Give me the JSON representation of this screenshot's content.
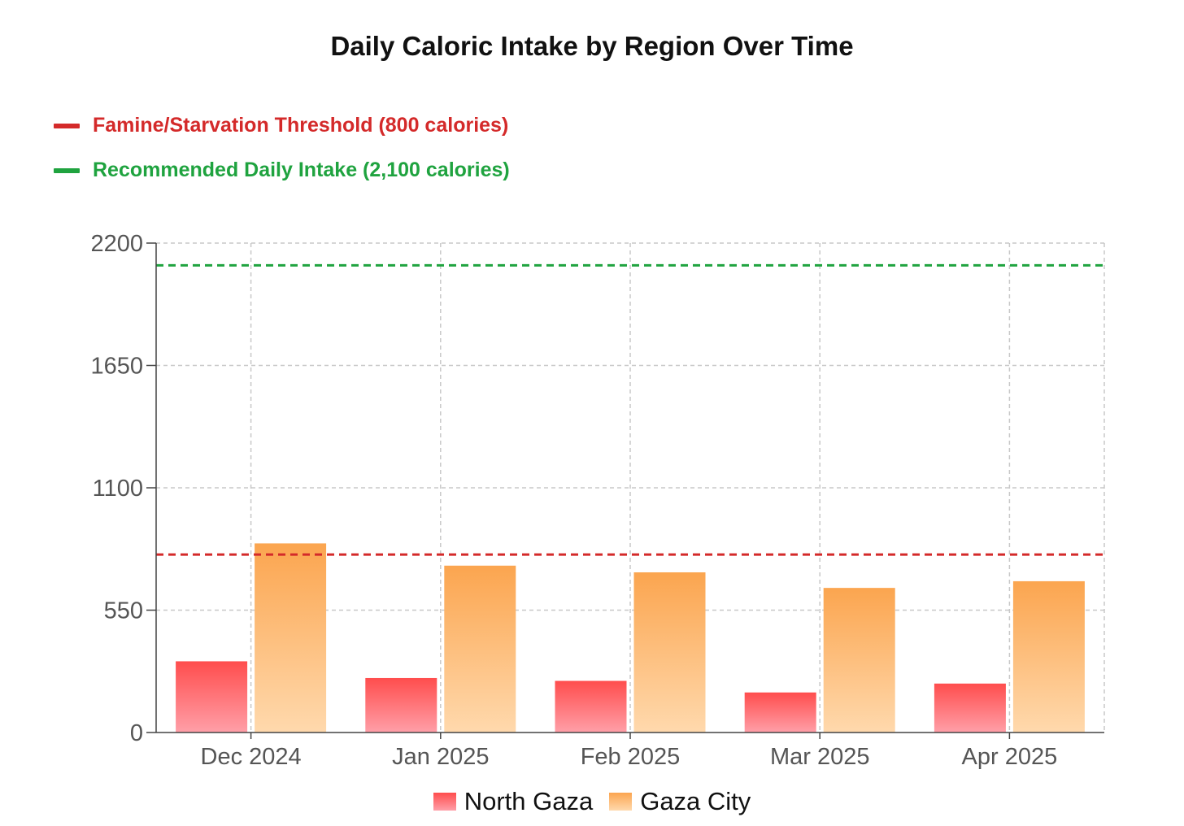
{
  "chart_data": {
    "type": "bar",
    "title": "Daily Caloric Intake by Region Over Time",
    "xlabel": "",
    "ylabel": "",
    "ylim": [
      0,
      2200
    ],
    "yticks": [
      0,
      550,
      1100,
      1650,
      2200
    ],
    "grid": true,
    "categories": [
      "Dec 2024",
      "Jan 2025",
      "Feb 2025",
      "Mar 2025",
      "Apr 2025"
    ],
    "series": [
      {
        "name": "North Gaza",
        "values": [
          320,
          245,
          232,
          180,
          220
        ],
        "color_top": "#ff4d4d",
        "color_bottom": "#ff9fa8"
      },
      {
        "name": "Gaza City",
        "values": [
          850,
          750,
          720,
          650,
          680
        ],
        "color_top": "#fba54f",
        "color_bottom": "#ffd9ad"
      }
    ],
    "reference_lines": [
      {
        "label": "Famine/Starvation Threshold (800 calories)",
        "value": 800,
        "color": "#d42a2a"
      },
      {
        "label": "Recommended Daily Intake (2,100 calories)",
        "value": 2100,
        "color": "#1fa33f"
      }
    ],
    "legend_position": "bottom"
  }
}
